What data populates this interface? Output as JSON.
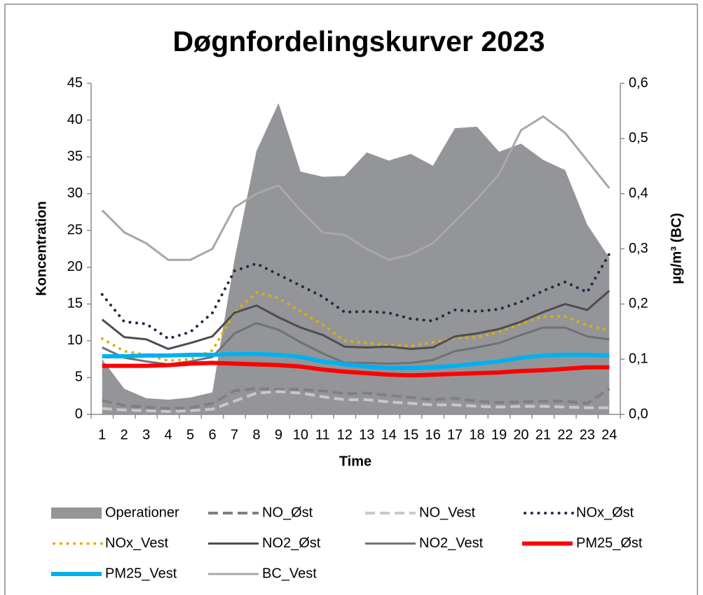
{
  "chart_data": {
    "type": "line",
    "title": "Døgnfordelingskurver 2023",
    "x_label": "Time",
    "y_label": "Koncentration",
    "y2_label": "µg/m³ (BC)",
    "categories": [
      "1",
      "2",
      "3",
      "4",
      "5",
      "6",
      "7",
      "8",
      "9",
      "10",
      "11",
      "12",
      "13",
      "14",
      "15",
      "16",
      "17",
      "18",
      "19",
      "20",
      "21",
      "22",
      "23",
      "24"
    ],
    "ylim": [
      0,
      45
    ],
    "yticks": [
      0,
      5,
      10,
      15,
      20,
      25,
      30,
      35,
      40,
      45
    ],
    "y2lim": [
      0,
      0.6
    ],
    "y2ticks": [
      {
        "value": 0,
        "label": "0,0"
      },
      {
        "value": 0.1,
        "label": "0,1"
      },
      {
        "value": 0.2,
        "label": "0,2"
      },
      {
        "value": 0.3,
        "label": "0,3"
      },
      {
        "value": 0.4,
        "label": "0,4"
      },
      {
        "value": 0.5,
        "label": "0,5"
      },
      {
        "value": 0.6,
        "label": "0,6"
      }
    ],
    "legend": "bottom",
    "series": [
      {
        "name": "Operationer",
        "kind": "area",
        "color": "#939598",
        "values": [
          7.5,
          3.5,
          2.2,
          2.0,
          2.3,
          3.0,
          21,
          35.8,
          42.3,
          33,
          32.3,
          32.4,
          35.6,
          34.5,
          35.4,
          33.8,
          38.9,
          39.1,
          35.7,
          36.8,
          34.6,
          33.2,
          25.8,
          21.3
        ]
      },
      {
        "name": "NO_Øst",
        "kind": "line",
        "dash": "dash",
        "width": 4,
        "color": "#808080",
        "values": [
          1.9,
          1.2,
          1.0,
          0.8,
          0.9,
          1.5,
          3.2,
          3.5,
          3.4,
          3.4,
          3.2,
          2.8,
          2.9,
          2.6,
          2.3,
          2.0,
          2.2,
          1.8,
          1.6,
          1.7,
          1.8,
          1.8,
          1.5,
          3.5
        ]
      },
      {
        "name": "NO_Vest",
        "kind": "line",
        "dash": "dash",
        "width": 4,
        "color": "#c8c8c8",
        "values": [
          0.8,
          0.6,
          0.5,
          0.4,
          0.5,
          0.7,
          1.8,
          2.9,
          3.1,
          2.9,
          2.4,
          2.0,
          2.0,
          1.7,
          1.5,
          1.3,
          1.3,
          1.1,
          1.0,
          1.1,
          1.1,
          1.0,
          0.9,
          0.9
        ]
      },
      {
        "name": "NOx_Øst",
        "kind": "line",
        "dash": "dot",
        "width": 4,
        "color": "#1f2a44",
        "values": [
          16.3,
          12.6,
          12.3,
          10.3,
          11.2,
          13.8,
          19.5,
          20.5,
          19,
          17.5,
          16,
          13.9,
          14,
          13.8,
          13,
          12.7,
          14.2,
          14,
          14.3,
          15.3,
          16.8,
          18,
          16.6,
          21.8
        ]
      },
      {
        "name": "NOx_Vest",
        "kind": "line",
        "dash": "dot",
        "width": 4,
        "color": "#e0b000",
        "values": [
          10.3,
          8.6,
          8.1,
          7.3,
          7.5,
          8.7,
          13.8,
          16.6,
          15.8,
          14,
          12.2,
          10,
          9.7,
          9.4,
          9.3,
          9.8,
          10.3,
          10.5,
          11.2,
          12.3,
          13.3,
          13.3,
          12.1,
          11.4
        ]
      },
      {
        "name": "NO2_Øst",
        "kind": "line",
        "dash": "solid",
        "width": 3,
        "color": "#4d4d4f",
        "values": [
          12.9,
          10.5,
          10.2,
          8.9,
          9.7,
          10.6,
          13.8,
          14.8,
          13.2,
          11.8,
          10.8,
          9.2,
          9.1,
          9.2,
          8.9,
          9.1,
          10.6,
          11,
          11.6,
          12.6,
          13.9,
          15,
          14.2,
          16.8
        ]
      },
      {
        "name": "NO2_Vest",
        "kind": "line",
        "dash": "solid",
        "width": 3,
        "color": "#6f7274",
        "values": [
          9.1,
          7.7,
          7.2,
          6.8,
          7.2,
          7.8,
          11,
          12.4,
          11.5,
          9.8,
          8.3,
          7.0,
          7.0,
          6.9,
          7.0,
          7.4,
          8.6,
          9.1,
          9.7,
          10.8,
          11.8,
          11.8,
          10.6,
          10.2
        ]
      },
      {
        "name": "PM25_Øst",
        "kind": "line",
        "dash": "solid",
        "width": 6,
        "color": "#ff0000",
        "values": [
          6.6,
          6.6,
          6.6,
          6.7,
          6.9,
          7.0,
          6.9,
          6.8,
          6.7,
          6.5,
          6.1,
          5.8,
          5.6,
          5.4,
          5.3,
          5.4,
          5.5,
          5.6,
          5.7,
          5.9,
          6.0,
          6.2,
          6.4,
          6.4
        ]
      },
      {
        "name": "PM25_Vest",
        "kind": "line",
        "dash": "solid",
        "width": 6,
        "color": "#00b0f0",
        "values": [
          7.9,
          7.9,
          8.0,
          8.0,
          8.1,
          8.1,
          8.2,
          8.2,
          8.1,
          7.8,
          7.2,
          6.8,
          6.5,
          6.3,
          6.3,
          6.4,
          6.6,
          6.9,
          7.2,
          7.7,
          8.0,
          8.1,
          8.1,
          8.0
        ]
      },
      {
        "name": "BC_Vest",
        "kind": "line",
        "dash": "solid",
        "width": 3,
        "color": "#a8a8a8",
        "axis": "y2",
        "values": [
          0.37,
          0.33,
          0.31,
          0.28,
          0.28,
          0.3,
          0.375,
          0.4,
          0.415,
          0.37,
          0.33,
          0.325,
          0.3,
          0.28,
          0.29,
          0.31,
          0.35,
          0.39,
          0.435,
          0.515,
          0.54,
          0.51,
          0.46,
          0.41
        ]
      }
    ]
  }
}
